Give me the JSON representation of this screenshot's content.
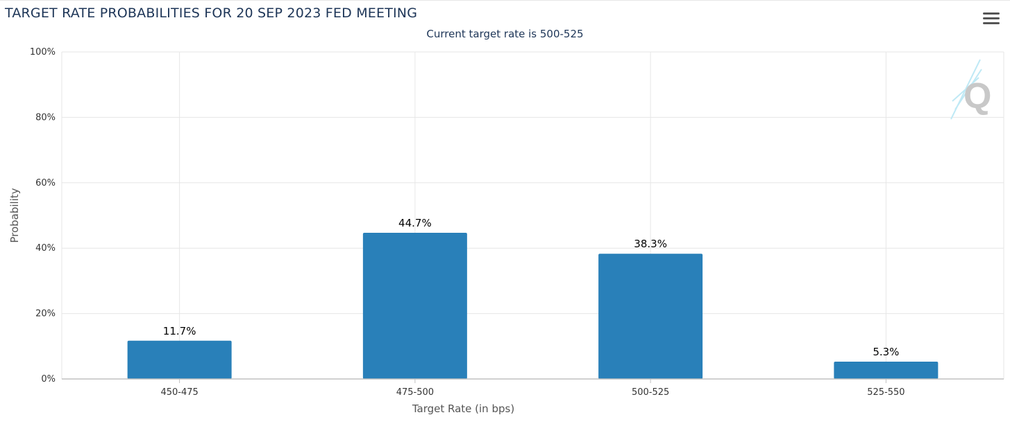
{
  "header": {
    "title": "TARGET RATE PROBABILITIES FOR 20 SEP 2023 FED MEETING",
    "subtitle": "Current target rate is 500-525",
    "menu_icon": "hamburger-menu-icon"
  },
  "watermark": {
    "text": "Q",
    "icon": "quikstrike-logo-icon"
  },
  "chart_data": {
    "type": "bar",
    "title": "TARGET RATE PROBABILITIES FOR 20 SEP 2023 FED MEETING",
    "subtitle": "Current target rate is 500-525",
    "xlabel": "Target Rate (in bps)",
    "ylabel": "Probability",
    "categories": [
      "450-475",
      "475-500",
      "500-525",
      "525-550"
    ],
    "values": [
      11.7,
      44.7,
      38.3,
      5.3
    ],
    "data_labels": [
      "11.7%",
      "44.7%",
      "38.3%",
      "5.3%"
    ],
    "ylim": [
      0,
      100
    ],
    "yticks": [
      "0%",
      "20%",
      "40%",
      "60%",
      "80%",
      "100%"
    ],
    "ytick_values": [
      0,
      20,
      40,
      60,
      80,
      100
    ],
    "grid": true,
    "colors": {
      "bar": "#2980b9",
      "grid": "#e6e6e6",
      "axis": "#c0c0c0"
    }
  }
}
